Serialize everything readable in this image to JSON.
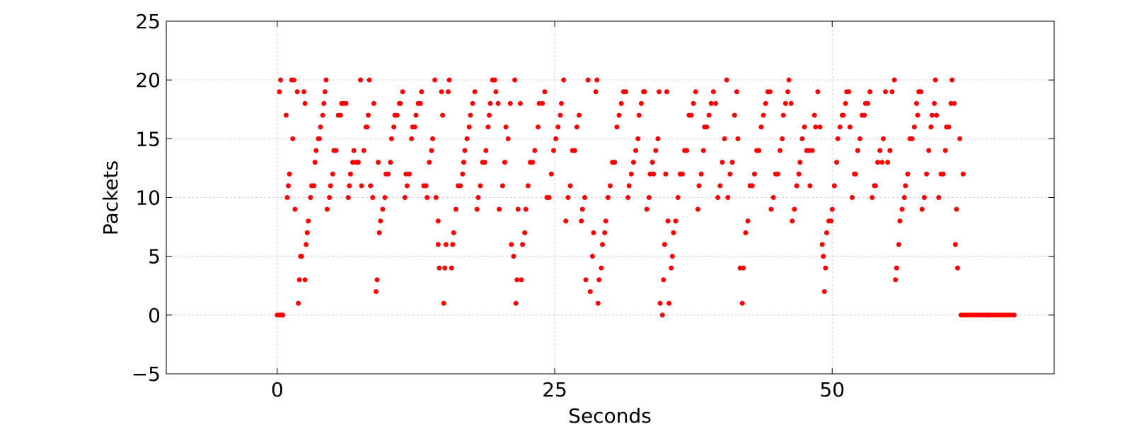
{
  "chart_data": {
    "type": "scatter",
    "x_label": "Seconds",
    "y_label": "Packets",
    "xlim": [
      -10,
      70
    ],
    "xticks": [
      0,
      25,
      50
    ],
    "ylim": [
      -5,
      25
    ],
    "yticks": [
      {
        "value": -5,
        "label": "−5"
      },
      0,
      5,
      10,
      15,
      20,
      25
    ],
    "grid": true,
    "series": [
      {
        "color": "#ff0000",
        "x": [
          0,
          0.2,
          0.4,
          0.5,
          0.2,
          0.3,
          0.8,
          0.9,
          1.0,
          1.1,
          1.3,
          1.5,
          1.4,
          1.6,
          1.8,
          1.9,
          2.0,
          2.1,
          2.2,
          2.4,
          2.5,
          2.5,
          2.6,
          2.7,
          2.8,
          3.0,
          3.1,
          3.3,
          3.4,
          3.5,
          3.7,
          3.8,
          3.9,
          4.1,
          4.2,
          4.3,
          4.4,
          4.5,
          4.7,
          4.8,
          5.0,
          5.1,
          5.3,
          5.5,
          5.7,
          5.8,
          6.0,
          6.2,
          6.4,
          6.5,
          6.6,
          6.8,
          6.9,
          7.1,
          7.3,
          7.5,
          7.6,
          7.8,
          8.0,
          8.1,
          8.2,
          8.3,
          8.4,
          8.6,
          8.7,
          8.9,
          9.0,
          9.1,
          9.2,
          9.3,
          9.5,
          9.7,
          9.8,
          10.0,
          10.2,
          10.3,
          10.5,
          10.6,
          10.8,
          11.0,
          11.1,
          11.3,
          11.5,
          11.6,
          11.7,
          11.9,
          12.1,
          12.2,
          12.4,
          12.5,
          12.7,
          12.9,
          13.0,
          13.2,
          13.4,
          13.5,
          13.7,
          13.9,
          14.0,
          14.2,
          14.3,
          14.5,
          14.5,
          14.6,
          14.8,
          14.9,
          15.0,
          15.1,
          15.2,
          15.4,
          15.5,
          15.7,
          15.8,
          15.9,
          16.1,
          16.3,
          16.5,
          16.7,
          16.8,
          16.9,
          17.1,
          17.3,
          17.4,
          17.6,
          17.8,
          18.0,
          18.1,
          18.3,
          18.5,
          18.7,
          18.8,
          19.0,
          19.1,
          19.2,
          19.4,
          19.6,
          19.7,
          19.9,
          20.0,
          20.3,
          20.5,
          20.6,
          20.8,
          21.0,
          21.1,
          21.3,
          21.4,
          21.5,
          21.6,
          21.7,
          21.9,
          22.0,
          22.1,
          22.3,
          22.4,
          22.6,
          22.8,
          23.0,
          23.2,
          23.5,
          23.6,
          23.9,
          24.1,
          24.3,
          24.5,
          24.7,
          24.9,
          25.1,
          25.3,
          25.5,
          25.6,
          25.8,
          26.0,
          26.2,
          26.4,
          26.6,
          26.8,
          27.0,
          27.2,
          27.4,
          27.5,
          27.7,
          27.8,
          28.0,
          28.2,
          28.4,
          28.5,
          28.7,
          28.8,
          28.9,
          29.0,
          29.2,
          29.3,
          29.5,
          29.6,
          29.8,
          30.0,
          30.2,
          30.4,
          30.6,
          30.8,
          31.0,
          31.2,
          31.4,
          31.6,
          31.7,
          31.9,
          32.1,
          32.3,
          32.5,
          32.6,
          32.8,
          33.0,
          33.1,
          33.3,
          33.5,
          33.6,
          33.8,
          33.9,
          34.1,
          34.3,
          34.4,
          34.5,
          34.7,
          34.8,
          34.9,
          35.0,
          35.1,
          35.2,
          35.3,
          35.5,
          35.6,
          35.7,
          35.9,
          36.1,
          36.3,
          36.5,
          36.7,
          36.9,
          37.1,
          37.3,
          37.5,
          37.7,
          37.9,
          38.0,
          38.2,
          38.4,
          38.5,
          38.7,
          38.9,
          39.1,
          39.3,
          39.5,
          39.7,
          39.9,
          40.1,
          40.3,
          40.5,
          40.6,
          40.8,
          41.0,
          41.2,
          41.4,
          41.5,
          41.7,
          41.9,
          42.0,
          42.2,
          42.4,
          42.6,
          42.8,
          43.0,
          43.2,
          43.4,
          43.6,
          43.8,
          44.0,
          44.2,
          44.4,
          44.5,
          44.7,
          44.9,
          45.1,
          45.3,
          45.5,
          45.6,
          45.8,
          46.0,
          46.1,
          46.3,
          46.4,
          46.6,
          46.8,
          47.0,
          47.1,
          47.3,
          47.5,
          47.7,
          47.9,
          48.0,
          48.2,
          48.4,
          48.5,
          48.7,
          48.9,
          49.1,
          49.2,
          49.3,
          49.4,
          49.5,
          49.7,
          49.9,
          50.0,
          50.2,
          50.4,
          50.5,
          50.7,
          50.9,
          51.0,
          51.2,
          51.3,
          51.5,
          51.6,
          51.8,
          52.0,
          52.1,
          52.3,
          52.5,
          52.7,
          52.9,
          53.0,
          53.2,
          53.4,
          53.6,
          53.8,
          53.9,
          54.1,
          54.3,
          54.5,
          54.6,
          54.8,
          55.0,
          55.2,
          55.4,
          55.6,
          55.7,
          55.8,
          56.0,
          56.1,
          56.3,
          56.5,
          56.6,
          56.8,
          57.0,
          57.2,
          57.4,
          57.6,
          57.7,
          57.8,
          58.0,
          58.1,
          58.3,
          58.5,
          58.7,
          58.9,
          59.0,
          59.2,
          59.3,
          59.4,
          59.6,
          59.8,
          60.0,
          60.2,
          60.3,
          60.5,
          60.7,
          60.8,
          61.0,
          61.1,
          61.2,
          61.3,
          61.5,
          61.8,
          61.6,
          61.8,
          62.0,
          62.2,
          62.4,
          62.6,
          62.8,
          63.0,
          63.2,
          63.4,
          63.6,
          63.8,
          64.0,
          64.2,
          64.4,
          64.6,
          64.8,
          65.0,
          65.2,
          65.4,
          65.6,
          65.8,
          66.0,
          66.2,
          66.4
        ],
        "values": [
          0,
          0,
          0,
          0,
          19,
          20,
          17,
          10,
          11,
          12,
          20,
          20,
          15,
          9,
          19,
          1,
          3,
          5,
          5,
          19,
          3,
          18,
          6,
          7,
          8,
          10,
          11,
          11,
          13,
          14,
          15,
          15,
          16,
          17,
          18,
          19,
          20,
          9,
          10,
          11,
          12,
          14,
          14,
          17,
          17,
          18,
          18,
          18,
          10,
          11,
          12,
          13,
          14,
          13,
          13,
          20,
          11,
          14,
          16,
          16,
          17,
          20,
          11,
          10,
          18,
          2,
          3,
          13,
          7,
          8,
          9,
          10,
          12,
          12,
          13,
          15,
          16,
          17,
          17,
          18,
          18,
          19,
          10,
          12,
          11,
          12,
          15,
          16,
          16,
          17,
          18,
          18,
          19,
          11,
          11,
          10,
          13,
          14,
          15,
          20,
          10,
          6,
          8,
          4,
          19,
          17,
          1,
          4,
          6,
          19,
          20,
          4,
          6,
          7,
          9,
          11,
          11,
          12,
          13,
          14,
          15,
          16,
          17,
          18,
          19,
          9,
          10,
          11,
          13,
          13,
          14,
          16,
          17,
          18,
          20,
          20,
          19,
          18,
          9,
          11,
          13,
          16,
          15,
          18,
          6,
          5,
          20,
          1,
          3,
          9,
          18,
          3,
          6,
          7,
          9,
          11,
          13,
          13,
          14,
          16,
          18,
          18,
          19,
          10,
          10,
          12,
          14,
          15,
          16,
          17,
          18,
          20,
          8,
          10,
          11,
          14,
          14,
          16,
          17,
          8,
          9,
          10,
          3,
          20,
          2,
          5,
          7,
          19,
          20,
          1,
          3,
          4,
          6,
          7,
          8,
          10,
          11,
          13,
          13,
          16,
          17,
          18,
          19,
          19,
          10,
          11,
          12,
          13,
          14,
          15,
          17,
          18,
          19,
          19,
          9,
          10,
          12,
          13,
          12,
          14,
          15,
          19,
          1,
          0,
          3,
          6,
          12,
          19,
          8,
          1,
          4,
          5,
          7,
          8,
          10,
          12,
          12,
          14,
          14,
          17,
          17,
          18,
          19,
          9,
          11,
          12,
          14,
          16,
          16,
          17,
          18,
          19,
          18,
          10,
          11,
          13,
          15,
          20,
          10,
          12,
          13,
          17,
          19,
          15,
          4,
          1,
          4,
          7,
          8,
          11,
          11,
          12,
          14,
          14,
          16,
          17,
          18,
          19,
          19,
          9,
          10,
          12,
          12,
          14,
          15,
          17,
          18,
          19,
          20,
          18,
          8,
          9,
          11,
          12,
          13,
          15,
          16,
          14,
          14,
          11,
          14,
          17,
          16,
          19,
          16,
          6,
          5,
          2,
          4,
          7,
          8,
          8,
          9,
          11,
          13,
          15,
          16,
          17,
          17,
          18,
          19,
          19,
          16,
          10,
          12,
          12,
          14,
          15,
          17,
          17,
          18,
          18,
          19,
          10,
          11,
          11,
          13,
          14,
          13,
          15,
          19,
          13,
          14,
          19,
          20,
          3,
          4,
          6,
          8,
          9,
          10,
          11,
          12,
          15,
          15,
          16,
          18,
          17,
          19,
          19,
          9,
          10,
          12,
          14,
          16,
          17,
          18,
          20,
          17,
          10,
          12,
          12,
          14,
          16,
          16,
          18,
          20,
          18,
          6,
          9,
          4,
          15,
          12,
          0,
          0,
          0,
          0,
          0,
          0,
          0,
          0,
          0,
          0,
          0,
          0,
          0,
          0,
          0,
          0,
          0,
          0,
          0,
          0,
          0,
          0,
          0,
          0,
          0
        ]
      }
    ]
  }
}
